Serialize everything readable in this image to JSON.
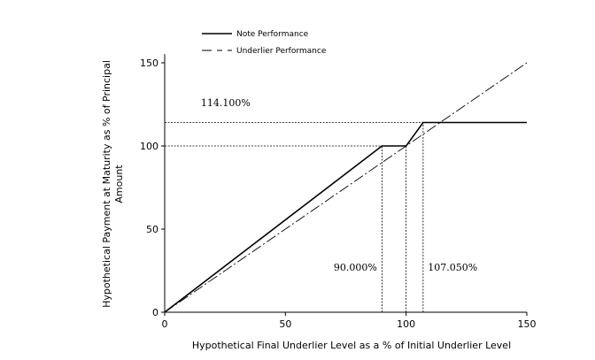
{
  "chart_data": {
    "type": "line",
    "title": "",
    "xlabel": "Hypothetical Final Underlier Level as a % of Initial Underlier Level",
    "ylabel_lines": [
      "Hypothetical Payment at Maturity as % of Principal",
      "Amount"
    ],
    "xlim": [
      0,
      150
    ],
    "ylim": [
      0,
      160
    ],
    "xticks": [
      0,
      50,
      100,
      150
    ],
    "yticks": [
      0,
      50,
      100,
      150
    ],
    "grid": false,
    "legend_position": "top-left",
    "series": [
      {
        "name": "Note Performance",
        "style": "solid",
        "color": "#000000",
        "x": [
          0,
          90,
          100,
          107.05,
          150
        ],
        "y": [
          0,
          100,
          100,
          114.1,
          114.1
        ]
      },
      {
        "name": "Underlier Performance",
        "style": "dashdot",
        "color": "#000000",
        "x": [
          0,
          150
        ],
        "y": [
          0,
          150
        ]
      }
    ],
    "reference_lines": [
      {
        "kind": "horizontal",
        "y": 114.1,
        "x_from": 0,
        "x_to": 107.05
      },
      {
        "kind": "horizontal",
        "y": 100,
        "x_from": 0,
        "x_to": 90
      },
      {
        "kind": "vertical",
        "x": 90,
        "y_from": 0,
        "y_to": 100
      },
      {
        "kind": "vertical",
        "x": 100,
        "y_from": 0,
        "y_to": 100
      },
      {
        "kind": "vertical",
        "x": 107.05,
        "y_from": 0,
        "y_to": 114.1
      }
    ],
    "annotations": [
      {
        "text": "114.100%",
        "x": 15,
        "y": 124
      },
      {
        "text": "90.000%",
        "x": 70,
        "y": 25
      },
      {
        "text": "107.050%",
        "x": 109,
        "y": 25
      }
    ]
  }
}
